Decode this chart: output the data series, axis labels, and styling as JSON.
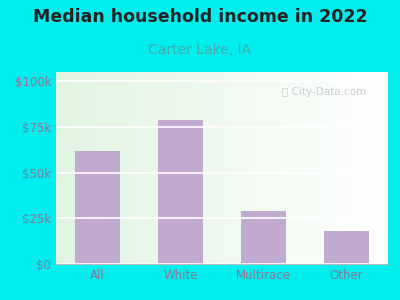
{
  "title": "Median household income in 2022",
  "subtitle": "Carter Lake, IA",
  "categories": [
    "All",
    "White",
    "Multirace",
    "Other"
  ],
  "values": [
    62000,
    79000,
    29000,
    18000
  ],
  "bar_color": "#c0aad0",
  "title_fontsize": 12.5,
  "subtitle_fontsize": 10,
  "title_color": "#222222",
  "subtitle_color": "#44aaaa",
  "tick_label_color": "#887799",
  "bg_outer": "#00eeee",
  "yticks": [
    0,
    25000,
    50000,
    75000,
    100000
  ],
  "ytick_labels": [
    "$0",
    "$25k",
    "$50k",
    "$75k",
    "$100k"
  ],
  "ylim": [
    0,
    105000
  ],
  "watermark": "City-Data.com"
}
